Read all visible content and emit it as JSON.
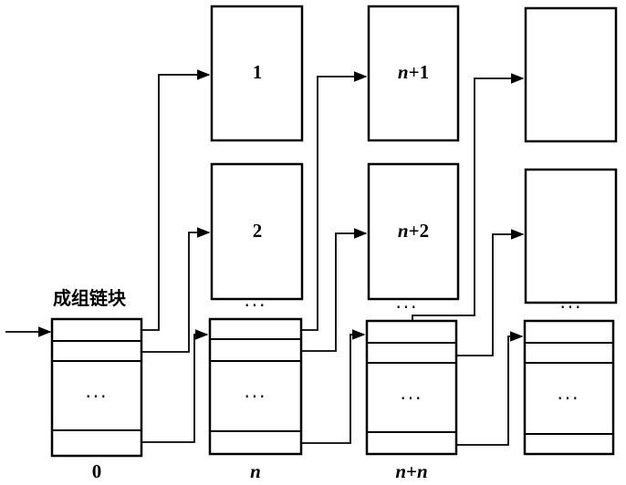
{
  "title": "成组链块",
  "ellipsis": "···",
  "groups": [
    {
      "label": "0"
    },
    {
      "label": "n"
    },
    {
      "label": "n+n"
    }
  ],
  "blocks": {
    "b1": "1",
    "b2": "2",
    "bn1": {
      "n": "n",
      "rest": "+1"
    },
    "bn2": {
      "n": "n",
      "rest": "+2"
    }
  },
  "group_labels": {
    "n": "n",
    "nn": {
      "a": "n",
      "plus": "+",
      "b": "n"
    }
  }
}
